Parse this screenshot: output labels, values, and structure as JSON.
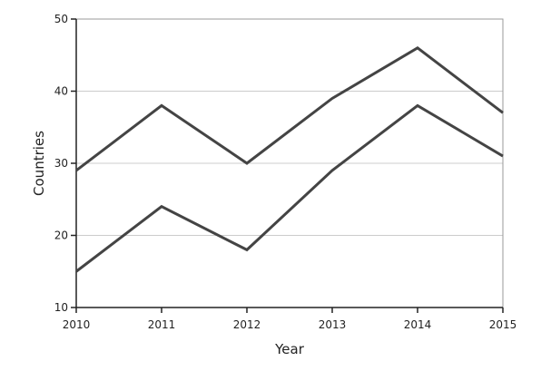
{
  "chart_data": {
    "type": "line",
    "title": "",
    "xlabel": "Year",
    "ylabel": "Countries",
    "x": [
      2010,
      2011,
      2012,
      2013,
      2014,
      2015
    ],
    "xlim": [
      2010,
      2015
    ],
    "ylim": [
      10,
      50
    ],
    "yticks": [
      10,
      20,
      30,
      40,
      50
    ],
    "xticks": [
      2010,
      2011,
      2012,
      2013,
      2014,
      2015
    ],
    "grid": "horizontal",
    "legend": "none",
    "series": [
      {
        "values": [
          29,
          38,
          30,
          39,
          46,
          37
        ]
      },
      {
        "values": [
          15,
          24,
          18,
          29,
          38,
          31
        ]
      }
    ],
    "colors": {
      "line": "#444444",
      "grid": "#cccccc",
      "frame": "#999999",
      "axis": "#222222"
    }
  }
}
